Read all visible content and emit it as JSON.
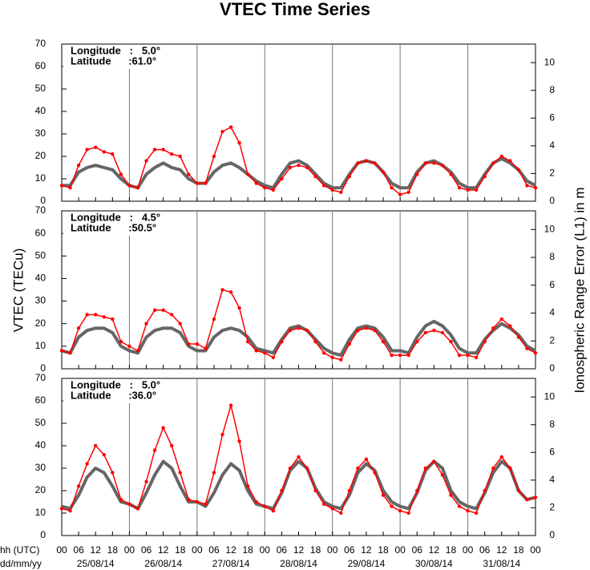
{
  "page": {
    "title": "VTEC Time Series",
    "ylabel": "VTEC (TECu)",
    "y2label": "Ionospheric Range Error (L1) in m",
    "hour_label": "hh (UTC)",
    "date_label": "dd/mm/yy",
    "dates": [
      "25/08/14",
      "26/08/14",
      "27/08/14",
      "28/08/14",
      "29/08/14",
      "30/08/14",
      "31/08/14"
    ]
  },
  "chart_data": [
    {
      "type": "line",
      "annotations": [
        "Longitude   :   5.0°",
        "Latitude      :61.0°"
      ],
      "x": [
        0,
        3,
        6,
        9,
        12,
        15,
        18,
        21,
        24,
        27,
        30,
        33,
        36,
        39,
        42,
        45,
        48,
        51,
        54,
        57,
        60,
        63,
        66,
        69,
        72,
        75,
        78,
        81,
        84,
        87,
        90,
        93,
        96,
        99,
        102,
        105,
        108,
        111,
        114,
        117,
        120,
        123,
        126,
        129,
        132,
        135,
        138,
        141,
        144,
        147,
        150,
        153,
        156,
        159,
        162,
        165,
        168
      ],
      "xlim": [
        0,
        168
      ],
      "ylim": [
        0,
        70
      ],
      "yticks": [
        0,
        10,
        20,
        30,
        40,
        50,
        60,
        70
      ],
      "y2lim": [
        0,
        11.34
      ],
      "y2ticks": [
        0,
        2,
        4,
        6,
        8,
        10
      ],
      "series": [
        {
          "color": "#666666",
          "values": [
            7,
            7,
            13,
            15,
            16,
            15,
            14,
            10,
            7,
            6,
            12,
            15,
            17,
            15,
            14,
            10,
            8,
            8,
            13,
            16,
            17,
            15,
            12,
            9,
            7,
            6,
            12,
            17,
            18,
            16,
            12,
            8,
            6,
            6,
            12,
            17,
            18,
            17,
            13,
            8,
            6,
            6,
            13,
            17,
            18,
            16,
            13,
            8,
            6,
            6,
            12,
            17,
            19,
            17,
            14,
            9,
            7
          ]
        },
        {
          "color": "#ff0000",
          "values": [
            7,
            6,
            16,
            23,
            24,
            22,
            21,
            12,
            7,
            6,
            18,
            23,
            23,
            21,
            20,
            12,
            8,
            8,
            20,
            31,
            33,
            26,
            12,
            8,
            6,
            5,
            10,
            15,
            16,
            15,
            11,
            7,
            5,
            4,
            11,
            17,
            18,
            17,
            13,
            6,
            3,
            4,
            12,
            17,
            17,
            16,
            12,
            6,
            5,
            5,
            11,
            17,
            20,
            18,
            14,
            7,
            6
          ]
        }
      ]
    },
    {
      "type": "line",
      "annotations": [
        "Longitude   :   4.5°",
        "Latitude      :50.5°"
      ],
      "x": [
        0,
        3,
        6,
        9,
        12,
        15,
        18,
        21,
        24,
        27,
        30,
        33,
        36,
        39,
        42,
        45,
        48,
        51,
        54,
        57,
        60,
        63,
        66,
        69,
        72,
        75,
        78,
        81,
        84,
        87,
        90,
        93,
        96,
        99,
        102,
        105,
        108,
        111,
        114,
        117,
        120,
        123,
        126,
        129,
        132,
        135,
        138,
        141,
        144,
        147,
        150,
        153,
        156,
        159,
        162,
        165,
        168
      ],
      "xlim": [
        0,
        168
      ],
      "ylim": [
        0,
        70
      ],
      "yticks": [
        0,
        10,
        20,
        30,
        40,
        50,
        60,
        70
      ],
      "y2lim": [
        0,
        11.34
      ],
      "y2ticks": [
        0,
        2,
        4,
        6,
        8,
        10
      ],
      "series": [
        {
          "color": "#666666",
          "values": [
            8,
            7,
            14,
            17,
            18,
            18,
            16,
            10,
            8,
            7,
            14,
            17,
            18,
            18,
            16,
            10,
            8,
            8,
            14,
            17,
            18,
            17,
            14,
            9,
            8,
            7,
            13,
            18,
            19,
            17,
            13,
            9,
            7,
            6,
            13,
            18,
            19,
            18,
            14,
            8,
            8,
            7,
            14,
            19,
            21,
            19,
            15,
            9,
            7,
            7,
            13,
            17,
            20,
            18,
            15,
            10,
            8
          ]
        },
        {
          "color": "#ff0000",
          "values": [
            8,
            7,
            18,
            24,
            24,
            23,
            22,
            12,
            10,
            8,
            20,
            26,
            26,
            24,
            20,
            11,
            11,
            9,
            22,
            35,
            34,
            27,
            12,
            8,
            7,
            5,
            12,
            17,
            18,
            17,
            12,
            7,
            5,
            4,
            11,
            17,
            18,
            17,
            12,
            6,
            6,
            6,
            12,
            16,
            17,
            16,
            12,
            6,
            6,
            5,
            12,
            18,
            22,
            19,
            14,
            9,
            7
          ]
        }
      ]
    },
    {
      "type": "line",
      "annotations": [
        "Longitude   :   5.0°",
        "Latitude      :36.0°"
      ],
      "x": [
        0,
        3,
        6,
        9,
        12,
        15,
        18,
        21,
        24,
        27,
        30,
        33,
        36,
        39,
        42,
        45,
        48,
        51,
        54,
        57,
        60,
        63,
        66,
        69,
        72,
        75,
        78,
        81,
        84,
        87,
        90,
        93,
        96,
        99,
        102,
        105,
        108,
        111,
        114,
        117,
        120,
        123,
        126,
        129,
        132,
        135,
        138,
        141,
        144,
        147,
        150,
        153,
        156,
        159,
        162,
        165,
        168
      ],
      "xlim": [
        0,
        168
      ],
      "ylim": [
        0,
        70
      ],
      "yticks": [
        0,
        10,
        20,
        30,
        40,
        50,
        60,
        70
      ],
      "y2lim": [
        0,
        11.34
      ],
      "y2ticks": [
        0,
        2,
        4,
        6,
        8,
        10
      ],
      "xticks": [
        {
          "value": 0,
          "label": "00"
        },
        {
          "value": 6,
          "label": "06"
        },
        {
          "value": 12,
          "label": "12"
        },
        {
          "value": 18,
          "label": "18"
        },
        {
          "value": 24,
          "label": "00"
        },
        {
          "value": 30,
          "label": "06"
        },
        {
          "value": 36,
          "label": "12"
        },
        {
          "value": 42,
          "label": "18"
        },
        {
          "value": 48,
          "label": "00"
        },
        {
          "value": 54,
          "label": "06"
        },
        {
          "value": 60,
          "label": "12"
        },
        {
          "value": 66,
          "label": "18"
        },
        {
          "value": 72,
          "label": "00"
        },
        {
          "value": 78,
          "label": "06"
        },
        {
          "value": 84,
          "label": "12"
        },
        {
          "value": 90,
          "label": "18"
        },
        {
          "value": 96,
          "label": "00"
        },
        {
          "value": 102,
          "label": "06"
        },
        {
          "value": 108,
          "label": "12"
        },
        {
          "value": 114,
          "label": "18"
        },
        {
          "value": 120,
          "label": "00"
        },
        {
          "value": 126,
          "label": "06"
        },
        {
          "value": 132,
          "label": "12"
        },
        {
          "value": 138,
          "label": "18"
        },
        {
          "value": 144,
          "label": "00"
        },
        {
          "value": 150,
          "label": "06"
        },
        {
          "value": 156,
          "label": "12"
        },
        {
          "value": 162,
          "label": "18"
        },
        {
          "value": 168,
          "label": "00"
        }
      ],
      "series": [
        {
          "color": "#666666",
          "values": [
            13,
            12,
            18,
            26,
            30,
            28,
            22,
            15,
            14,
            12,
            19,
            27,
            33,
            30,
            22,
            15,
            15,
            13,
            19,
            27,
            32,
            29,
            20,
            14,
            13,
            12,
            19,
            29,
            33,
            30,
            21,
            15,
            13,
            12,
            18,
            28,
            32,
            29,
            20,
            15,
            13,
            12,
            19,
            29,
            33,
            30,
            20,
            15,
            13,
            12,
            19,
            28,
            33,
            30,
            20,
            16,
            17
          ]
        },
        {
          "color": "#ff0000",
          "values": [
            12,
            11,
            22,
            32,
            40,
            36,
            28,
            16,
            14,
            12,
            24,
            38,
            48,
            40,
            28,
            16,
            15,
            14,
            28,
            45,
            58,
            42,
            22,
            15,
            13,
            11,
            20,
            30,
            35,
            30,
            20,
            14,
            12,
            10,
            20,
            30,
            34,
            28,
            18,
            13,
            11,
            10,
            20,
            30,
            33,
            27,
            18,
            13,
            11,
            10,
            20,
            30,
            35,
            30,
            20,
            16,
            17
          ]
        }
      ]
    }
  ]
}
